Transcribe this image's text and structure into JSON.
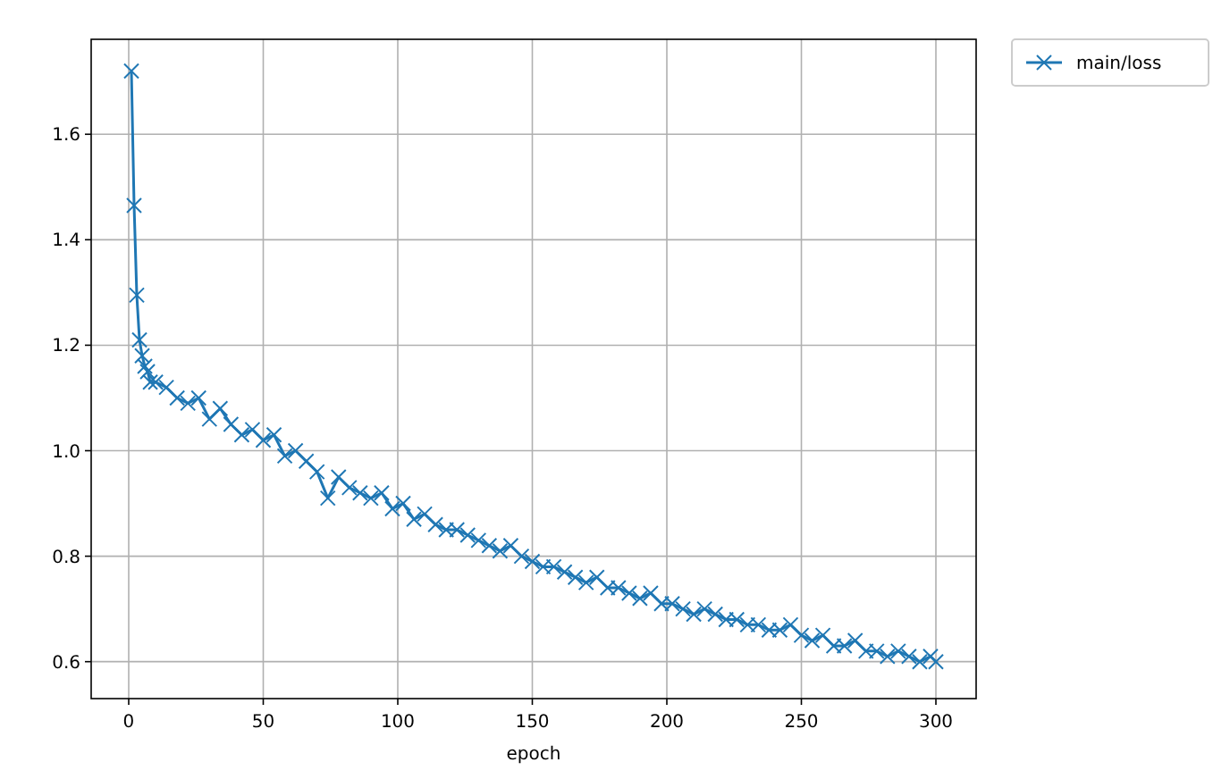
{
  "chart_data": {
    "type": "line",
    "xlabel": "epoch",
    "xlim": [
      -13.95,
      314.95
    ],
    "xticks": [
      0,
      50,
      100,
      150,
      200,
      250,
      300
    ],
    "ylim": [
      0.53,
      1.78
    ],
    "yticks": [
      {
        "value": 0.6,
        "label": "0.6"
      },
      {
        "value": 0.8,
        "label": "0.8"
      },
      {
        "value": 1.0,
        "label": "1.0"
      },
      {
        "value": 1.2,
        "label": "1.2"
      },
      {
        "value": 1.4,
        "label": "1.4"
      },
      {
        "value": 1.6,
        "label": "1.6"
      }
    ],
    "grid": true,
    "legend": "top right",
    "marker": "cross",
    "line_style": "solid",
    "series": [
      {
        "name": "main/loss",
        "color": "#1f77b4",
        "x": [
          1,
          2,
          3,
          4,
          5,
          6,
          7,
          8,
          10,
          14,
          18,
          22,
          26,
          30,
          34,
          38,
          42,
          46,
          50,
          54,
          58,
          62,
          66,
          70,
          74,
          78,
          82,
          86,
          90,
          94,
          98,
          102,
          106,
          110,
          114,
          118,
          122,
          126,
          130,
          134,
          138,
          142,
          146,
          150,
          154,
          158,
          162,
          166,
          170,
          174,
          178,
          182,
          186,
          190,
          194,
          198,
          202,
          206,
          210,
          214,
          218,
          222,
          226,
          230,
          234,
          238,
          242,
          246,
          250,
          254,
          258,
          262,
          266,
          270,
          274,
          278,
          282,
          286,
          290,
          294,
          298,
          300
        ],
        "values": [
          1.72,
          1.465,
          1.295,
          1.21,
          1.18,
          1.16,
          1.15,
          1.13,
          1.13,
          1.12,
          1.1,
          1.09,
          1.1,
          1.06,
          1.08,
          1.05,
          1.03,
          1.04,
          1.02,
          1.03,
          0.99,
          1.0,
          0.98,
          0.96,
          0.91,
          0.95,
          0.93,
          0.92,
          0.91,
          0.92,
          0.89,
          0.9,
          0.87,
          0.88,
          0.86,
          0.85,
          0.85,
          0.84,
          0.83,
          0.82,
          0.81,
          0.82,
          0.8,
          0.79,
          0.78,
          0.78,
          0.77,
          0.76,
          0.75,
          0.76,
          0.74,
          0.74,
          0.73,
          0.72,
          0.73,
          0.71,
          0.71,
          0.7,
          0.69,
          0.7,
          0.69,
          0.68,
          0.68,
          0.67,
          0.67,
          0.66,
          0.66,
          0.67,
          0.65,
          0.64,
          0.65,
          0.63,
          0.63,
          0.64,
          0.62,
          0.62,
          0.61,
          0.62,
          0.61,
          0.6,
          0.61,
          0.6
        ]
      }
    ]
  }
}
